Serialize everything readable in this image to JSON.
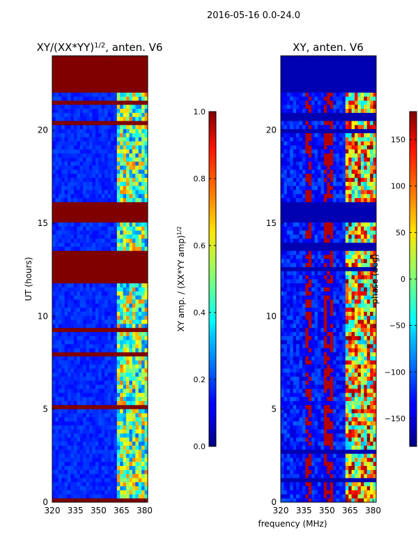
{
  "figure_title": "2016-05-16 0.0-24.0",
  "shared_xlabel": "frequency (MHz)",
  "chart_data": [
    {
      "type": "heatmap",
      "title_main": "XY/(XX*YY)",
      "title_sup": "1/2",
      "title_tail": ", anten. V6",
      "ylabel": "UT (hours)",
      "xlim": [
        320,
        382
      ],
      "ylim": [
        0,
        24
      ],
      "x_ticks": [
        320,
        335,
        350,
        365,
        380
      ],
      "y_ticks": [
        0,
        5,
        10,
        15,
        20
      ],
      "flagged_hours": [
        [
          11.8,
          13.6
        ],
        [
          15.1,
          16.1
        ],
        [
          20.2,
          20.5
        ],
        [
          21.4,
          21.6
        ],
        [
          22.1,
          24.0
        ]
      ],
      "colorbar": {
        "label_main": "XY amp. / (XX*YY amp)",
        "label_sup": "1/2",
        "range": [
          0.0,
          1.0
        ],
        "ticks": [
          0.0,
          0.2,
          0.4,
          0.6,
          0.8,
          1.0
        ],
        "tick_labels": [
          "0.0",
          "0.2",
          "0.4",
          "0.6",
          "0.8",
          "1.0"
        ]
      }
    },
    {
      "type": "heatmap",
      "title": "XY, anten. V6",
      "xlim": [
        320,
        382
      ],
      "ylim": [
        0,
        24
      ],
      "x_ticks": [
        320,
        335,
        350,
        365,
        380
      ],
      "y_ticks": [
        0,
        5,
        10,
        15,
        20
      ],
      "flagged_hours": [
        [
          13.6,
          14.0
        ],
        [
          15.1,
          16.1
        ],
        [
          20.6,
          21.0
        ],
        [
          22.1,
          24.0
        ]
      ],
      "colorbar": {
        "label": "phase (deg)",
        "range": [
          -180,
          180
        ],
        "ticks": [
          -150,
          -100,
          -50,
          0,
          50,
          100,
          150
        ],
        "tick_labels": [
          "−150",
          "−100",
          "−50",
          "0",
          "50",
          "100",
          "150"
        ]
      }
    }
  ]
}
